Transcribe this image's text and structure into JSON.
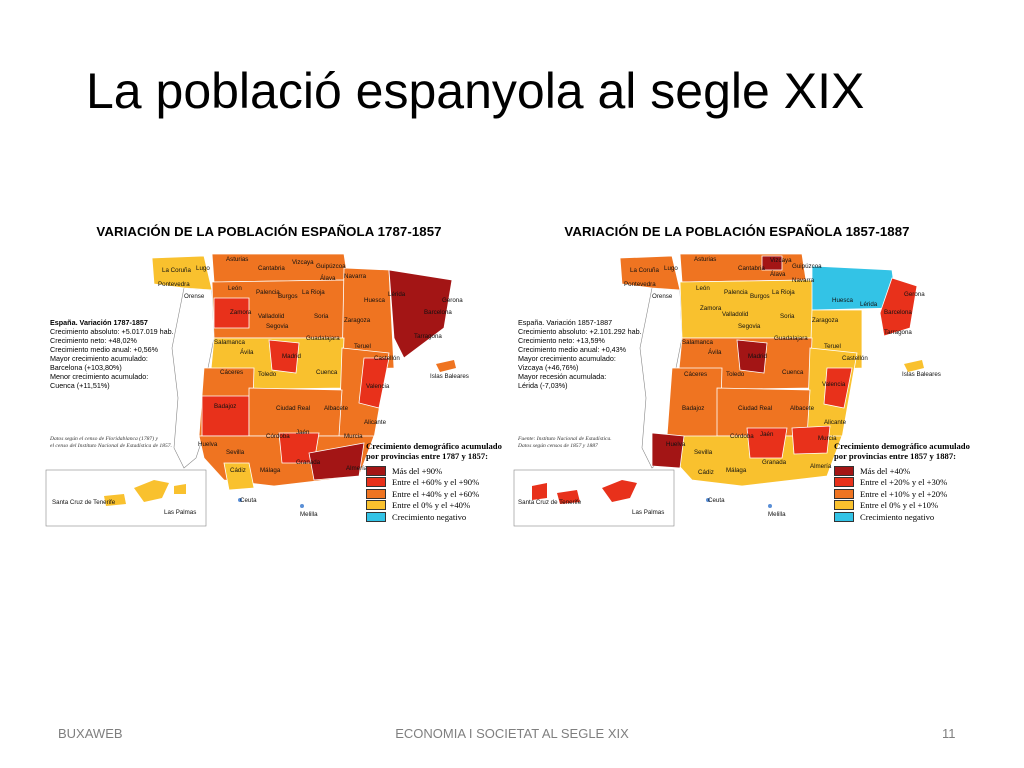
{
  "slide": {
    "title": "La població espanyola al segle XIX"
  },
  "footer": {
    "left": "BUXAWEB",
    "center": "ECONOMIA I SOCIETAT AL SEGLE XIX",
    "page_number": "11"
  },
  "map_left": {
    "title": "VARIACIÓN DE LA POBLACIÓN ESPAÑOLA 1787-1857",
    "info": [
      "España. Variación 1787-1857",
      "",
      "Crecimiento absoluto: +5.017.019 hab.",
      "Crecimiento neto: +48,02%",
      "Crecimiento medio anual: +0,56%",
      "",
      "Mayor crecimiento acumulado:",
      "Barcelona (+103,80%)",
      "",
      "Menor crecimiento acumulado:",
      "Cuenca (+11,51%)"
    ],
    "source": [
      "Datos según el censo de Floridablanca (1787) y",
      "el censo del Instituto Nacional de Estadística de 1857."
    ],
    "legend_title": [
      "Crecimiento demográfico acumulado",
      "por provincias entre 1787 y 1857:"
    ],
    "legend": [
      {
        "label": "Más del +90%",
        "color": "#a31515"
      },
      {
        "label": "Entre el +60% y el +90%",
        "color": "#e8311b"
      },
      {
        "label": "Entre el +40% y el +60%",
        "color": "#ef7421"
      },
      {
        "label": "Entre el 0% y el +40%",
        "color": "#f9c12e"
      },
      {
        "label": "Crecimiento negativo",
        "color": "#33c3e6"
      }
    ],
    "place_labels": [
      "La Coruña",
      "Lugo",
      "Asturias",
      "Cantabria",
      "Vizcaya",
      "Guipúzcoa",
      "Navarra",
      "Pontevedra",
      "Orense",
      "León",
      "Palencia",
      "Burgos",
      "La Rioja",
      "Álava",
      "Huesca",
      "Lérida",
      "Gerona",
      "Zamora",
      "Valladolid",
      "Soria",
      "Zaragoza",
      "Barcelona",
      "Tarragona",
      "Segovia",
      "Salamanca",
      "Ávila",
      "Madrid",
      "Guadalajara",
      "Teruel",
      "Castellón",
      "Cáceres",
      "Toledo",
      "Cuenca",
      "Valencia",
      "Islas Baleares",
      "Badajoz",
      "Ciudad Real",
      "Albacete",
      "Alicante",
      "Huelva",
      "Córdoba",
      "Jaén",
      "Murcia",
      "Sevilla",
      "Granada",
      "Almería",
      "Cádiz",
      "Málaga",
      "Ceuta",
      "Melilla",
      "Santa Cruz de Tenerife",
      "Las Palmas"
    ]
  },
  "map_right": {
    "title": "VARIACIÓN DE LA POBLACIÓN ESPAÑOLA 1857-1887",
    "info": [
      "España. Variación 1857-1887",
      "",
      "Crecimiento absoluto: +2.101.292 hab.",
      "Crecimiento neto: +13,59%",
      "Crecimiento medio anual: +0,43%",
      "",
      "Mayor crecimiento acumulado:",
      "Vizcaya (+46,76%)",
      "",
      "Mayor recesión acumulada:",
      "Lérida (-7,03%)"
    ],
    "source": [
      "Fuente: Instituto Nacional de Estadística.",
      "Datos según censos de 1857 y 1887"
    ],
    "legend_title": [
      "Crecimiento demográfico acumulado",
      "por provincias entre 1857 y 1887:"
    ],
    "legend": [
      {
        "label": "Más del +40%",
        "color": "#a31515"
      },
      {
        "label": "Entre el +20% y el +30%",
        "color": "#e8311b"
      },
      {
        "label": "Entre el +10% y el +20%",
        "color": "#ef7421"
      },
      {
        "label": "Entre el 0% y el +10%",
        "color": "#f9c12e"
      },
      {
        "label": "Crecimiento negativo",
        "color": "#33c3e6"
      }
    ],
    "place_labels": [
      "La Coruña",
      "Lugo",
      "Asturias",
      "Cantabria",
      "Vizcaya",
      "Guipúzcoa",
      "Álava",
      "Navarra",
      "Pontevedra",
      "Orense",
      "León",
      "Palencia",
      "Burgos",
      "La Rioja",
      "Huesca",
      "Lérida",
      "Gerona",
      "Barcelona",
      "Zamora",
      "Valladolid",
      "Soria",
      "Zaragoza",
      "Tarragona",
      "Segovia",
      "Salamanca",
      "Ávila",
      "Madrid",
      "Guadalajara",
      "Teruel",
      "Castellón",
      "Cáceres",
      "Toledo",
      "Cuenca",
      "Valencia",
      "Islas Baleares",
      "Badajoz",
      "Ciudad Real",
      "Albacete",
      "Alicante",
      "Huelva",
      "Córdoba",
      "Jaén",
      "Murcia",
      "Sevilla",
      "Granada",
      "Almería",
      "Cádiz",
      "Málaga",
      "Ceuta",
      "Melilla",
      "Santa Cruz de Tenerife",
      "Las Palmas"
    ]
  }
}
